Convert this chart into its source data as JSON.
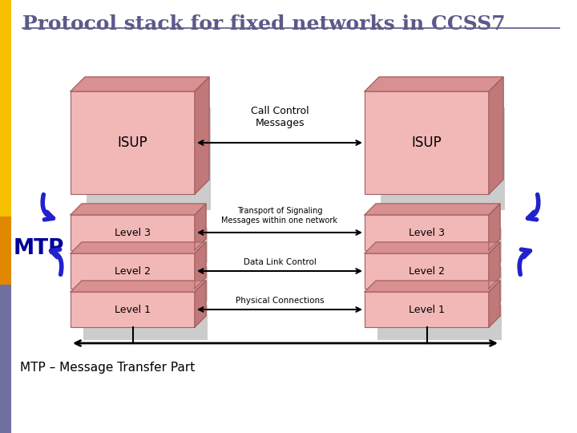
{
  "title": "Protocol stack for fixed networks in CCSS7",
  "title_color": "#5a5a8a",
  "title_fontsize": 18,
  "bg_color": "#ffffff",
  "box_face": "#f2b8b8",
  "box_top": "#d89090",
  "box_side": "#c07878",
  "box_edge": "#a06060",
  "shadow_color": "#bbbbbb",
  "arrow_color": "#000000",
  "blue_color": "#2222cc",
  "mtp_color": "#000099",
  "yellow_color": "#f5c000",
  "orange_color": "#e08000",
  "gray_color": "#7070a0",
  "subtitle": "MTP – Message Transfer Part",
  "isup_label": "ISUP",
  "level3_label": "Level 3",
  "level2_label": "Level 2",
  "level1_label": "Level 1",
  "call_control_msg": "Call Control\nMessages",
  "transport_msg": "Transport of Signaling\nMessages within one network",
  "data_link_msg": "Data Link Control",
  "physical_msg": "Physical Connections"
}
